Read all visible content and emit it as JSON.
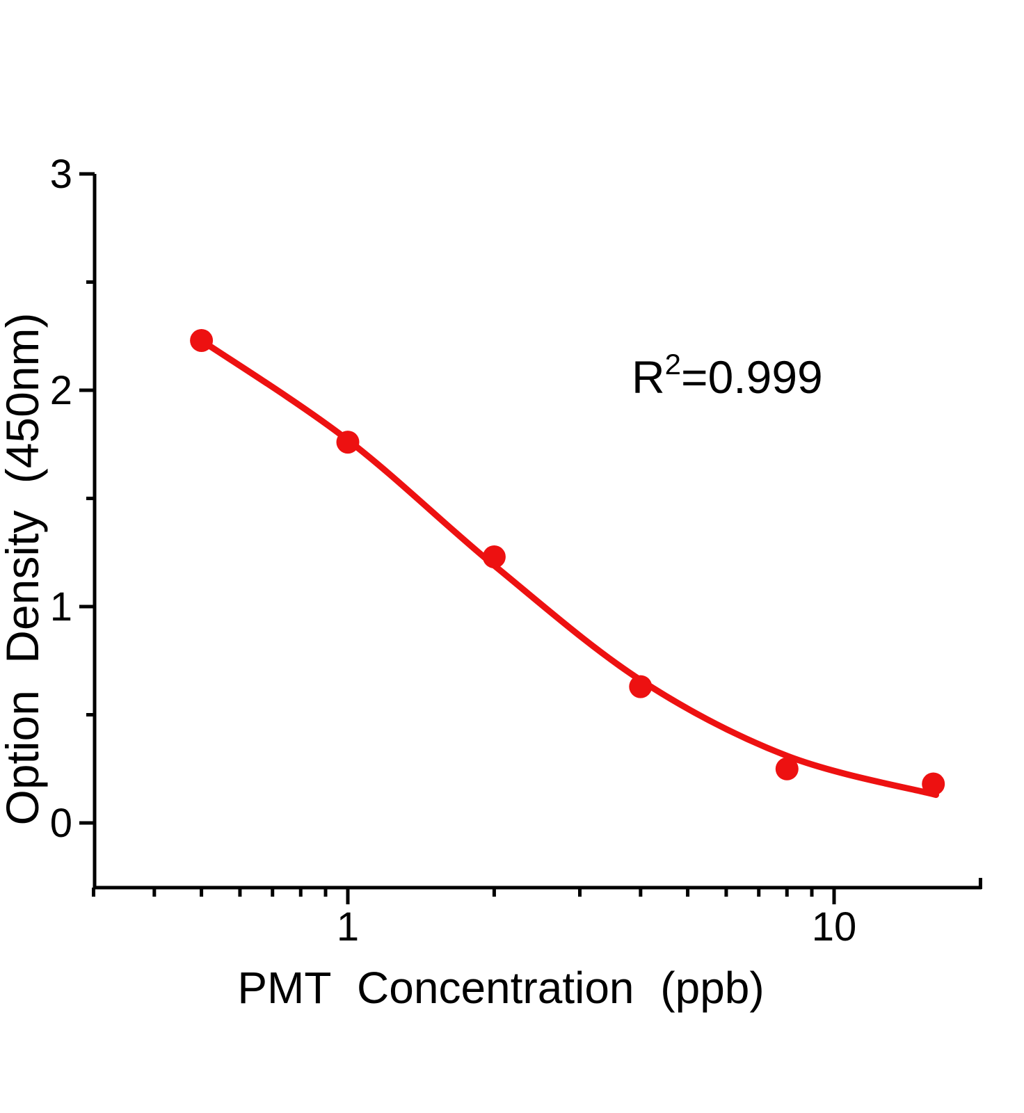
{
  "annotation_parts": {
    "base": "R",
    "sup": "2",
    "rest": "=0.999"
  },
  "chart_data": {
    "type": "scatter",
    "title": "",
    "xlabel": "PMT Concentration (ppb)",
    "ylabel": "Option Density (450nm)",
    "x_axis": {
      "label": "PMT Concentration (ppb)",
      "scale": "log",
      "lim": [
        0.3,
        20
      ],
      "major_ticks": [
        1,
        10
      ],
      "major_tick_labels": [
        "1",
        "10"
      ],
      "minor_ticks": [
        0.3,
        0.4,
        0.5,
        0.6,
        0.7,
        0.8,
        0.9,
        2,
        3,
        4,
        5,
        6,
        7,
        8,
        9
      ],
      "end_tick": 20
    },
    "y_axis": {
      "label": "Option Density (450nm)",
      "scale": "linear",
      "lim": [
        -0.3,
        3
      ],
      "major_ticks": [
        0,
        1,
        2,
        3
      ],
      "major_tick_labels": [
        "0",
        "1",
        "2",
        "3"
      ],
      "minor_ticks": [
        0.5,
        1.5,
        2.5
      ]
    },
    "grid": false,
    "legend": false,
    "series": [
      {
        "name": "4PL fit curve",
        "type": "line",
        "x": [
          0.5,
          1,
          2,
          4,
          8,
          16.2
        ],
        "y": [
          2.23,
          1.77,
          1.19,
          0.66,
          0.31,
          0.13
        ],
        "color": "#ed1111",
        "line_width": 9
      },
      {
        "name": "standard points",
        "type": "scatter",
        "x": [
          0.5,
          1,
          2,
          4,
          8,
          16
        ],
        "y": [
          2.23,
          1.76,
          1.23,
          0.63,
          0.25,
          0.18
        ],
        "color": "#ed1111",
        "marker_radius": 16.5
      }
    ],
    "annotations": [
      {
        "text": "R²=0.999",
        "x": 5,
        "y": 2.0
      }
    ],
    "colors": {
      "series": "#ed1111",
      "axis": "#000000",
      "background": "#ffffff"
    }
  }
}
